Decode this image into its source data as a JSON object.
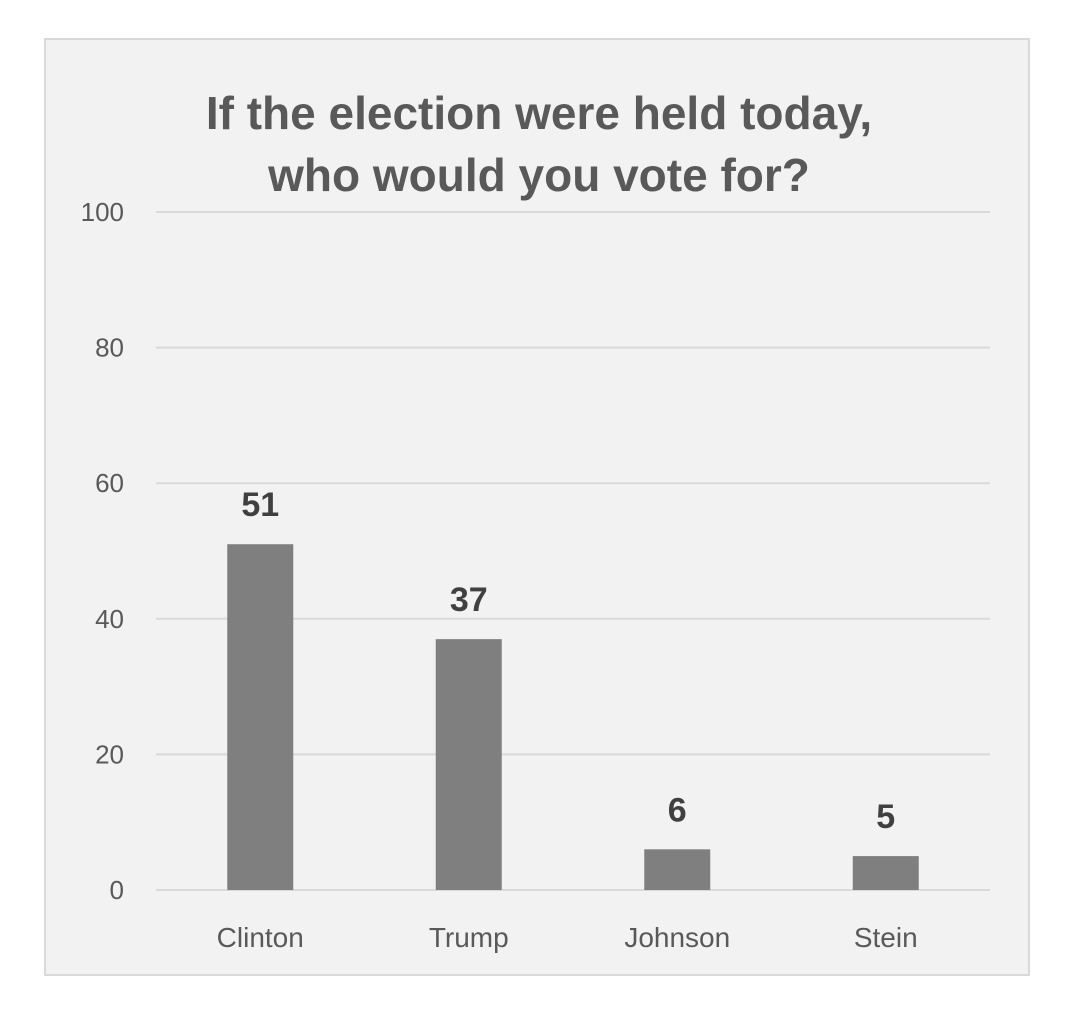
{
  "colors": {
    "background": "#f2f2f2",
    "bar": "#7f7f7f",
    "gridline": "#d9d9d9",
    "text": "#595959",
    "data_label": "#404040"
  },
  "chart_data": {
    "type": "bar",
    "title": "If the election were held today, who would you vote for?",
    "title_lines": [
      "If the election were held today,",
      "who would you vote for?"
    ],
    "categories": [
      "Clinton",
      "Trump",
      "Johnson",
      "Stein"
    ],
    "values": [
      51,
      37,
      6,
      5
    ],
    "data_labels": [
      "51",
      "37",
      "6",
      "5"
    ],
    "ylim": [
      0,
      100
    ],
    "yticks": [
      0,
      20,
      40,
      60,
      80,
      100
    ],
    "ytick_labels": [
      "0",
      "20",
      "40",
      "60",
      "80",
      "100"
    ],
    "xlabel": "",
    "ylabel": "",
    "grid": true,
    "legend": "none"
  }
}
